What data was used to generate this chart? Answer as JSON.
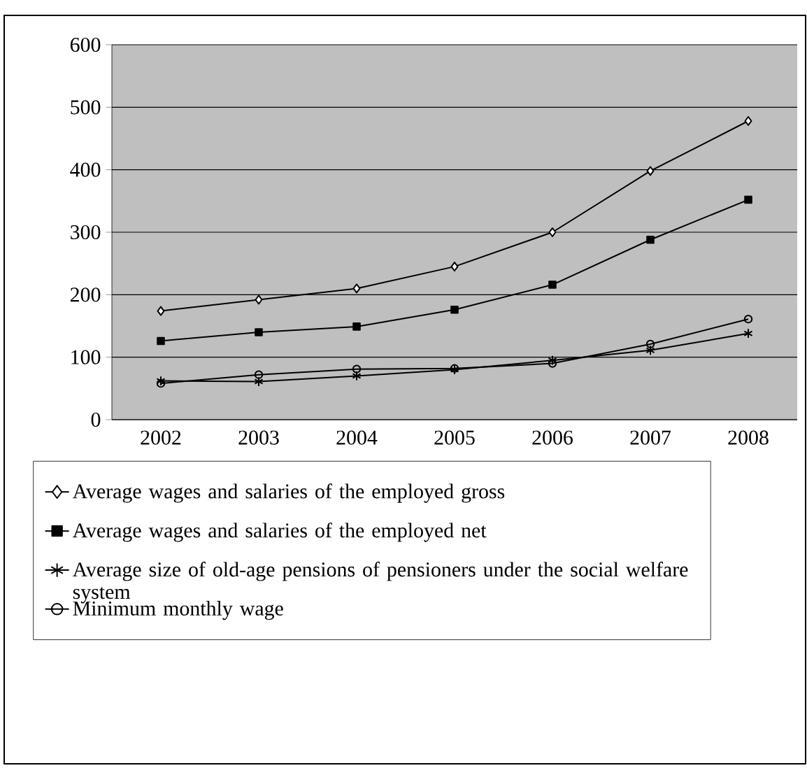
{
  "chart_data": {
    "type": "line",
    "categories": [
      "2002",
      "2003",
      "2004",
      "2005",
      "2006",
      "2007",
      "2008"
    ],
    "series": [
      {
        "name": "Average wages and salaries of the employed gross",
        "color": "#000000",
        "marker": "diamond",
        "values": [
          174,
          192,
          210,
          245,
          300,
          398,
          478
        ]
      },
      {
        "name": "Average wages and salaries of the employed net",
        "color": "#000000",
        "marker": "square",
        "values": [
          126,
          140,
          149,
          176,
          216,
          288,
          352
        ]
      },
      {
        "name": "Average size of old-age pensions of pensioners under the social welfare system",
        "color": "#000000",
        "marker": "cross",
        "values": [
          62,
          61,
          70,
          80,
          95,
          111,
          138
        ]
      },
      {
        "name": "Minimum monthly wage",
        "color": "#000000",
        "marker": "circle",
        "values": [
          58,
          72,
          81,
          82,
          90,
          121,
          161
        ]
      }
    ],
    "ylim": [
      0,
      600
    ],
    "yticks": [
      0,
      100,
      200,
      300,
      400,
      500,
      600
    ],
    "grid": "y",
    "legend": "bottom",
    "line_style": "solid"
  }
}
